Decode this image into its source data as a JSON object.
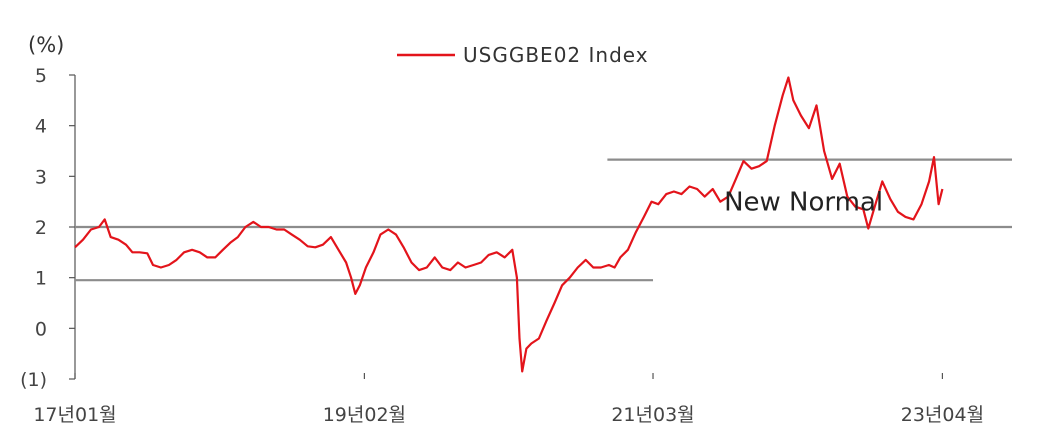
{
  "chart_data": {
    "type": "line",
    "ylabel": "(%)",
    "legend": {
      "placement": "top-center"
    },
    "ylim": [
      -1,
      5
    ],
    "yticks": [
      {
        "value": -1,
        "label": "(1)"
      },
      {
        "value": 0,
        "label": "0"
      },
      {
        "value": 1,
        "label": "1"
      },
      {
        "value": 2,
        "label": "2"
      },
      {
        "value": 3,
        "label": "3"
      },
      {
        "value": 4,
        "label": "4"
      },
      {
        "value": 5,
        "label": "5"
      }
    ],
    "xlim": [
      "2017-01-01",
      "2023-10-01"
    ],
    "xticks": [
      {
        "value": "2017-01-01",
        "label": "17년01월"
      },
      {
        "value": "2019-02-01",
        "label": "19년02월"
      },
      {
        "value": "2021-03-01",
        "label": "21년03월"
      },
      {
        "value": "2023-04-01",
        "label": "23년04월"
      }
    ],
    "grid": false,
    "series": [
      {
        "name": "USGGBE02 Index",
        "color": "#e3141b",
        "points": [
          [
            "2017-01-01",
            1.6
          ],
          [
            "2017-01-22",
            1.75
          ],
          [
            "2017-02-12",
            1.95
          ],
          [
            "2017-03-05",
            2.0
          ],
          [
            "2017-03-20",
            2.15
          ],
          [
            "2017-04-05",
            1.8
          ],
          [
            "2017-04-25",
            1.75
          ],
          [
            "2017-05-15",
            1.65
          ],
          [
            "2017-06-01",
            1.5
          ],
          [
            "2017-06-20",
            1.5
          ],
          [
            "2017-07-10",
            1.48
          ],
          [
            "2017-07-25",
            1.25
          ],
          [
            "2017-08-15",
            1.2
          ],
          [
            "2017-09-05",
            1.25
          ],
          [
            "2017-09-25",
            1.35
          ],
          [
            "2017-10-15",
            1.5
          ],
          [
            "2017-11-05",
            1.55
          ],
          [
            "2017-11-25",
            1.5
          ],
          [
            "2017-12-15",
            1.4
          ],
          [
            "2018-01-05",
            1.4
          ],
          [
            "2018-01-25",
            1.55
          ],
          [
            "2018-02-15",
            1.7
          ],
          [
            "2018-03-05",
            1.8
          ],
          [
            "2018-03-25",
            2.0
          ],
          [
            "2018-04-15",
            2.1
          ],
          [
            "2018-05-05",
            2.0
          ],
          [
            "2018-05-25",
            2.0
          ],
          [
            "2018-06-15",
            1.95
          ],
          [
            "2018-07-05",
            1.95
          ],
          [
            "2018-07-25",
            1.85
          ],
          [
            "2018-08-15",
            1.75
          ],
          [
            "2018-09-05",
            1.62
          ],
          [
            "2018-09-25",
            1.6
          ],
          [
            "2018-10-15",
            1.65
          ],
          [
            "2018-11-05",
            1.8
          ],
          [
            "2018-11-25",
            1.55
          ],
          [
            "2018-12-15",
            1.3
          ],
          [
            "2018-12-28",
            1.0
          ],
          [
            "2019-01-08",
            0.68
          ],
          [
            "2019-01-20",
            0.85
          ],
          [
            "2019-02-05",
            1.2
          ],
          [
            "2019-02-25",
            1.5
          ],
          [
            "2019-03-15",
            1.85
          ],
          [
            "2019-04-05",
            1.95
          ],
          [
            "2019-04-25",
            1.85
          ],
          [
            "2019-05-15",
            1.6
          ],
          [
            "2019-06-05",
            1.3
          ],
          [
            "2019-06-25",
            1.15
          ],
          [
            "2019-07-15",
            1.2
          ],
          [
            "2019-08-05",
            1.4
          ],
          [
            "2019-08-25",
            1.2
          ],
          [
            "2019-09-15",
            1.15
          ],
          [
            "2019-10-05",
            1.3
          ],
          [
            "2019-10-25",
            1.2
          ],
          [
            "2019-11-15",
            1.25
          ],
          [
            "2019-12-05",
            1.3
          ],
          [
            "2019-12-25",
            1.45
          ],
          [
            "2020-01-15",
            1.5
          ],
          [
            "2020-02-05",
            1.4
          ],
          [
            "2020-02-25",
            1.55
          ],
          [
            "2020-03-08",
            1.0
          ],
          [
            "2020-03-15",
            -0.2
          ],
          [
            "2020-03-22",
            -0.85
          ],
          [
            "2020-04-02",
            -0.4
          ],
          [
            "2020-04-15",
            -0.3
          ],
          [
            "2020-05-05",
            -0.2
          ],
          [
            "2020-05-25",
            0.15
          ],
          [
            "2020-06-15",
            0.5
          ],
          [
            "2020-07-05",
            0.85
          ],
          [
            "2020-07-25",
            1.0
          ],
          [
            "2020-08-15",
            1.2
          ],
          [
            "2020-09-05",
            1.35
          ],
          [
            "2020-09-25",
            1.2
          ],
          [
            "2020-10-15",
            1.2
          ],
          [
            "2020-11-05",
            1.25
          ],
          [
            "2020-11-20",
            1.2
          ],
          [
            "2020-12-05",
            1.4
          ],
          [
            "2020-12-25",
            1.55
          ],
          [
            "2021-01-15",
            1.9
          ],
          [
            "2021-02-05",
            2.2
          ],
          [
            "2021-02-25",
            2.5
          ],
          [
            "2021-03-15",
            2.45
          ],
          [
            "2021-04-05",
            2.65
          ],
          [
            "2021-04-25",
            2.7
          ],
          [
            "2021-05-15",
            2.65
          ],
          [
            "2021-06-05",
            2.8
          ],
          [
            "2021-06-25",
            2.75
          ],
          [
            "2021-07-15",
            2.6
          ],
          [
            "2021-08-05",
            2.75
          ],
          [
            "2021-08-25",
            2.5
          ],
          [
            "2021-09-15",
            2.6
          ],
          [
            "2021-10-05",
            2.95
          ],
          [
            "2021-10-25",
            3.3
          ],
          [
            "2021-11-15",
            3.15
          ],
          [
            "2021-12-05",
            3.2
          ],
          [
            "2021-12-25",
            3.3
          ],
          [
            "2022-01-15",
            4.0
          ],
          [
            "2022-02-05",
            4.6
          ],
          [
            "2022-02-20",
            4.95
          ],
          [
            "2022-03-05",
            4.5
          ],
          [
            "2022-03-25",
            4.2
          ],
          [
            "2022-04-15",
            3.95
          ],
          [
            "2022-05-05",
            4.4
          ],
          [
            "2022-05-25",
            3.5
          ],
          [
            "2022-06-15",
            2.95
          ],
          [
            "2022-07-05",
            3.25
          ],
          [
            "2022-07-25",
            2.6
          ],
          [
            "2022-08-15",
            2.4
          ],
          [
            "2022-09-05",
            2.35
          ],
          [
            "2022-09-18",
            1.97
          ],
          [
            "2022-10-05",
            2.4
          ],
          [
            "2022-10-25",
            2.9
          ],
          [
            "2022-11-15",
            2.55
          ],
          [
            "2022-12-05",
            2.3
          ],
          [
            "2022-12-25",
            2.2
          ],
          [
            "2023-01-15",
            2.15
          ],
          [
            "2023-02-05",
            2.45
          ],
          [
            "2023-02-25",
            2.9
          ],
          [
            "2023-03-10",
            3.38
          ],
          [
            "2023-03-22",
            2.45
          ],
          [
            "2023-04-01",
            2.75
          ]
        ]
      }
    ],
    "reference_lines": [
      {
        "y": 0.95,
        "x_start": "2017-01-01",
        "x_end": "2021-03-01"
      },
      {
        "y": 2.0,
        "x_start": "2017-01-01",
        "x_end": "2023-10-01"
      },
      {
        "y": 3.33,
        "x_start": "2020-11-01",
        "x_end": "2023-10-01"
      }
    ],
    "annotations": [
      {
        "text": "New Normal",
        "x": "2022-04-01",
        "y": 2.5
      }
    ]
  }
}
